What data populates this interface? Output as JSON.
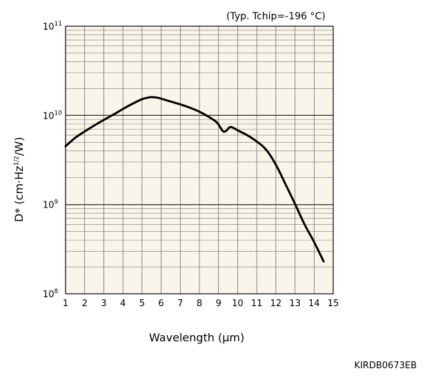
{
  "chart_data": {
    "type": "line",
    "condition": "(Typ. Tchip=-196 °C)",
    "xlabel": "Wavelength (µm)",
    "ylabel_prefix": "D* (cm·Hz",
    "ylabel_sup": "1/2",
    "ylabel_suffix": "/W)",
    "xlim": [
      1,
      15
    ],
    "x_ticks": [
      "1",
      "2",
      "3",
      "4",
      "5",
      "6",
      "7",
      "8",
      "9",
      "10",
      "11",
      "12",
      "13",
      "14",
      "15"
    ],
    "y_scale": "log",
    "ylim": [
      100000000,
      100000000000
    ],
    "y_tick_labels": [
      {
        "base": "10",
        "exp": "8"
      },
      {
        "base": "10",
        "exp": "9"
      },
      {
        "base": "10",
        "exp": "10"
      },
      {
        "base": "10",
        "exp": "11"
      }
    ],
    "grid": true,
    "series": [
      {
        "x": [
          1.0,
          1.5,
          2.0,
          2.5,
          3.0,
          3.5,
          4.0,
          4.5,
          5.0,
          5.3,
          5.5,
          5.8,
          6.0,
          6.5,
          7.0,
          7.5,
          8.0,
          8.5,
          8.9,
          9.1,
          9.25,
          9.4,
          9.6,
          9.8,
          10.0,
          10.5,
          11.0,
          11.5,
          12.0,
          12.5,
          13.0,
          13.5,
          14.0,
          14.5
        ],
        "y": [
          4500000000.0,
          5600000000.0,
          6600000000.0,
          7700000000.0,
          8900000000.0,
          10200000000.0,
          11800000000.0,
          13500000000.0,
          15200000000.0,
          15800000000.0,
          16000000000.0,
          15800000000.0,
          15400000000.0,
          14300000000.0,
          13300000000.0,
          12200000000.0,
          11000000000.0,
          9600000000.0,
          8400000000.0,
          7300000000.0,
          6600000000.0,
          6700000000.0,
          7400000000.0,
          7200000000.0,
          6800000000.0,
          6000000000.0,
          5100000000.0,
          4100000000.0,
          2800000000.0,
          1700000000.0,
          1020000000.0,
          600000000.0,
          380000000.0,
          230000000.0
        ]
      }
    ]
  },
  "figure_code": "KIRDB0673EB"
}
